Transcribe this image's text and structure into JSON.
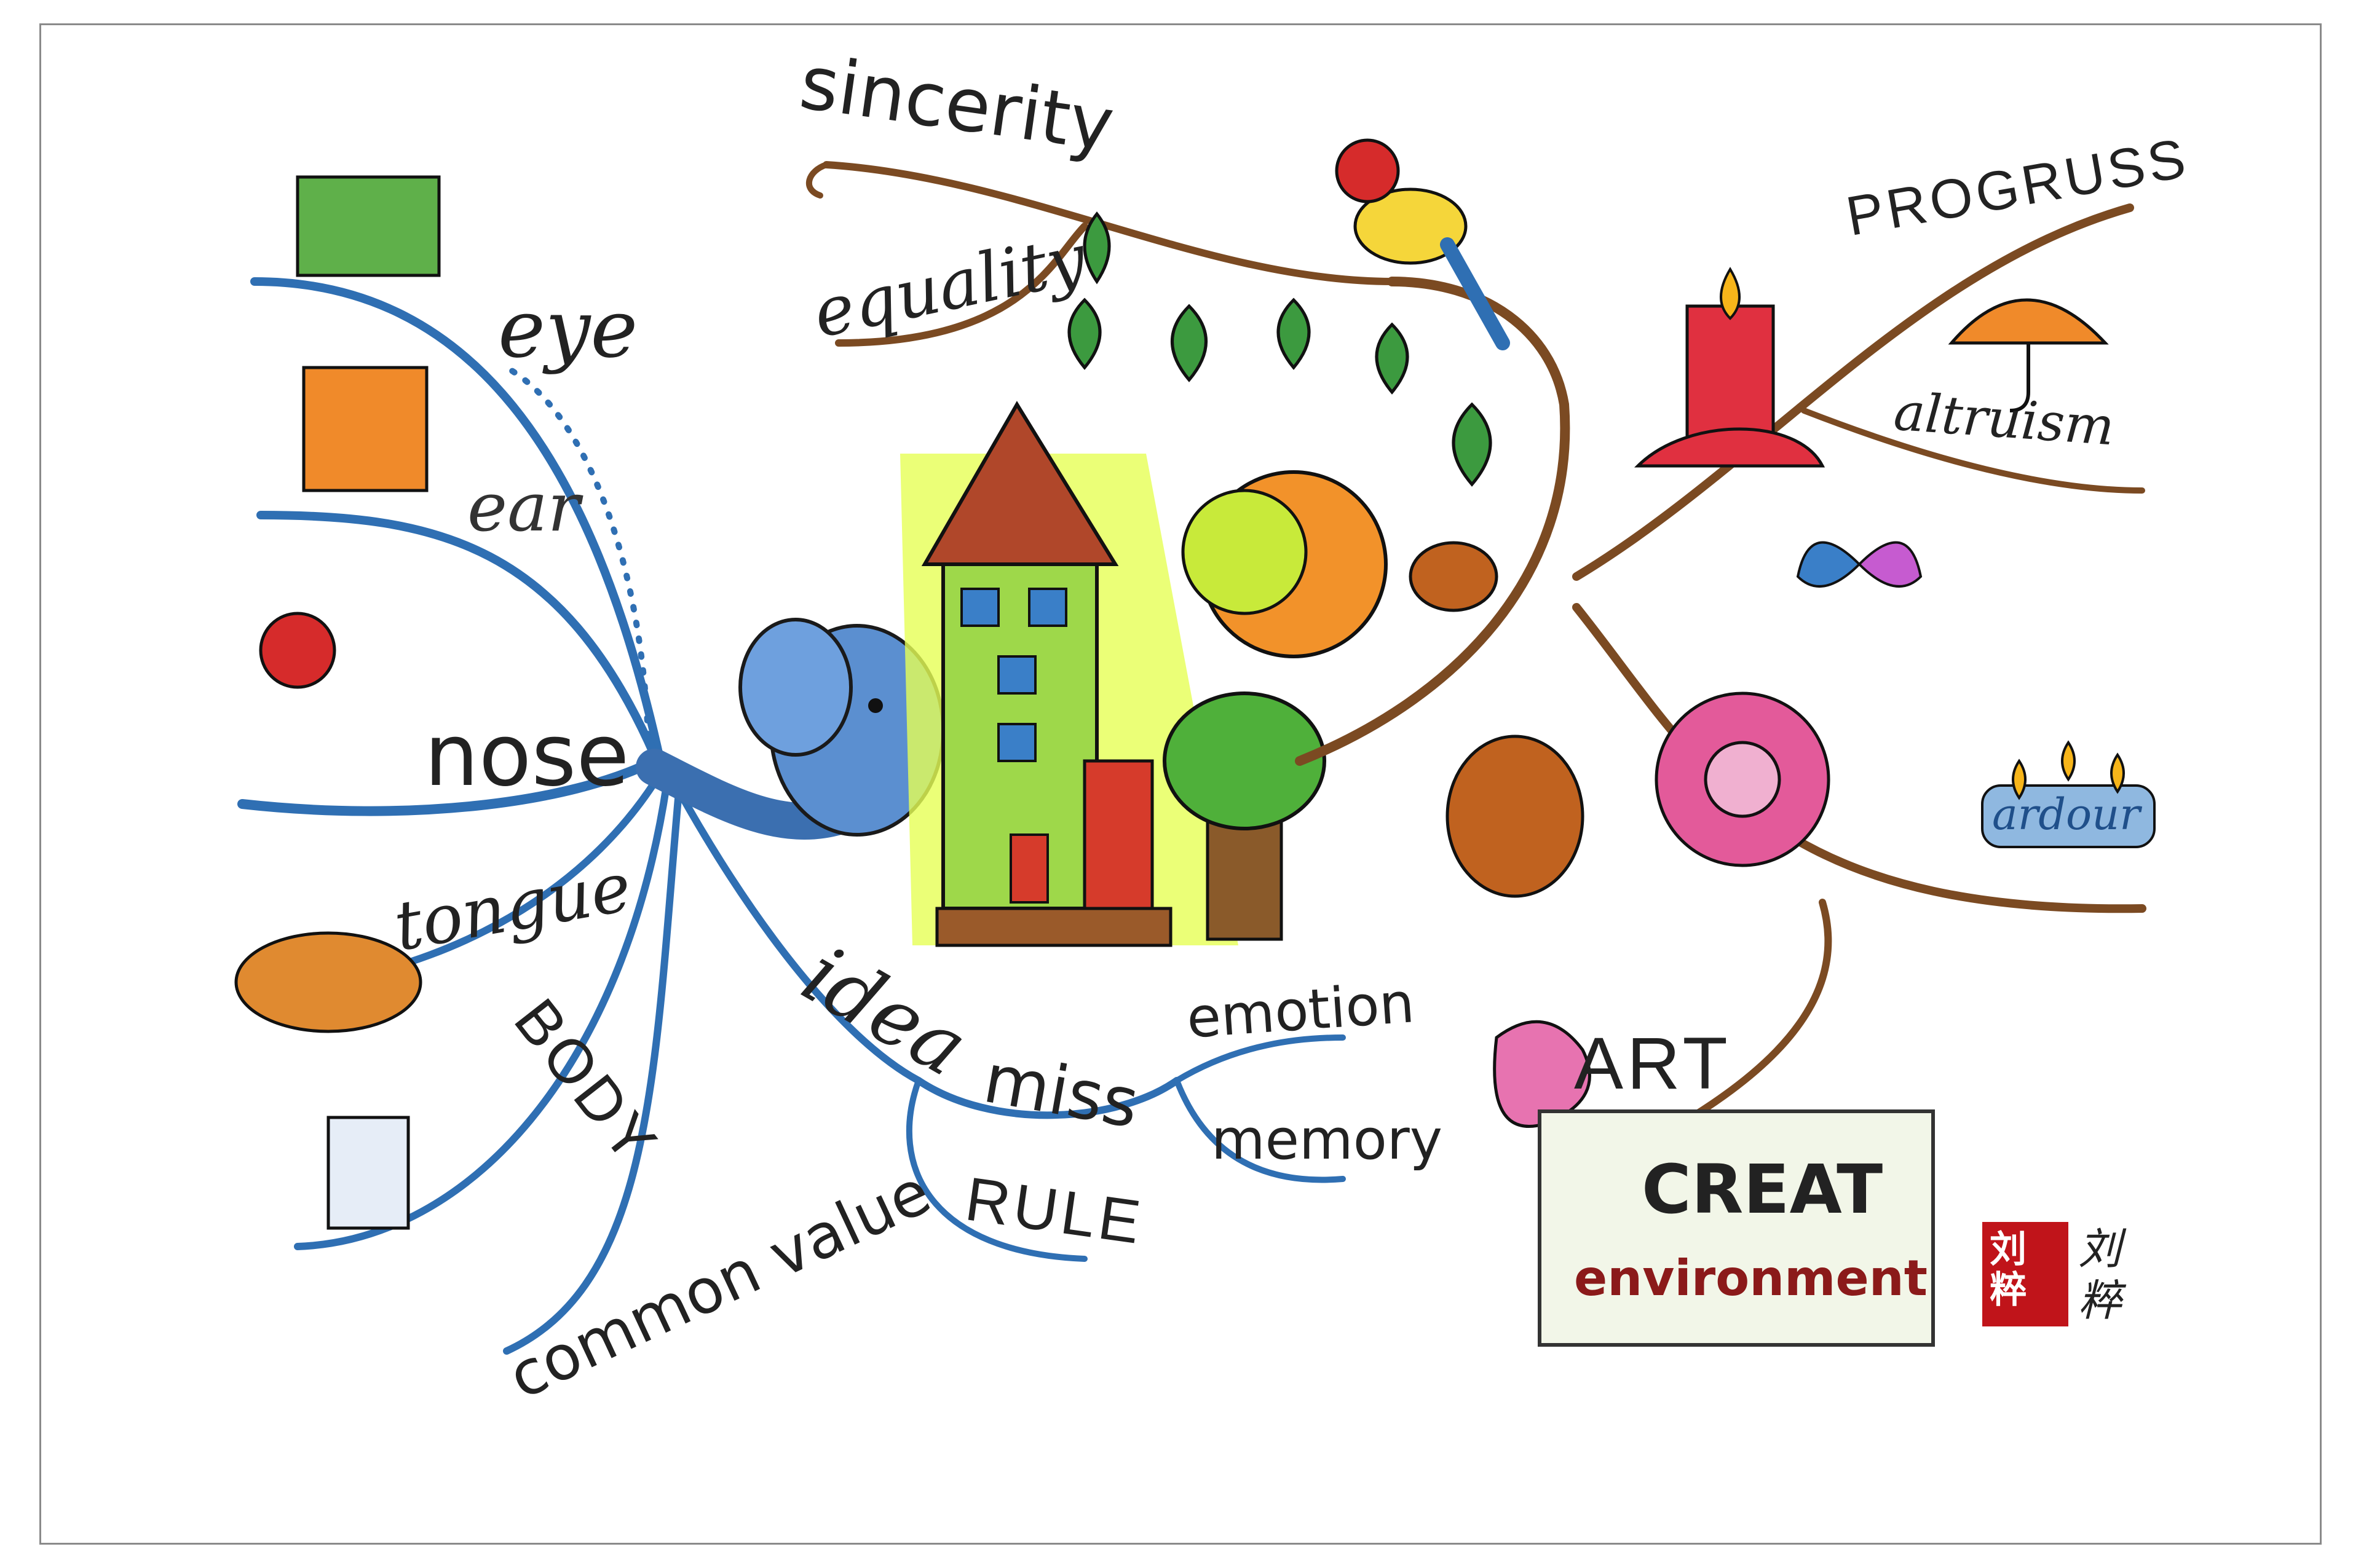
{
  "mind_map": {
    "left_branches": {
      "eye": "eye",
      "ear": "ear",
      "nose": "nose",
      "tongue": "tongue",
      "body": "BODY"
    },
    "bottom_branches": {
      "idea": "idea",
      "miss": "miss",
      "emotion": "emotion",
      "memory": "memory",
      "rule": "RULE",
      "common_value": "common value"
    },
    "top_branches": {
      "sincerity": "sincerity",
      "equality": "equality"
    },
    "right_branches": {
      "progress": "PROGRUSS",
      "altruism": "altruism",
      "ardour": "ardour",
      "art": "ART"
    },
    "sign": {
      "line1": "CREAT",
      "line2": "environment"
    },
    "seal": {
      "stamp_chars": "刘粹",
      "signature": "刘粹"
    },
    "colors": {
      "blue_branch": "#2f6fb3",
      "brown_branch": "#7b4a22",
      "leaf_green": "#2e8b3a",
      "house_glow": "#d8ff3a",
      "seal_red": "#c0141a"
    }
  }
}
